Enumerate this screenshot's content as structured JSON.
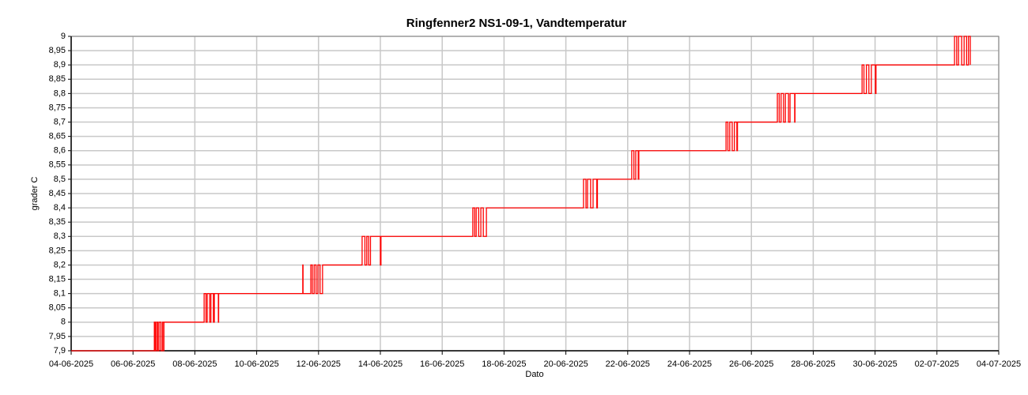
{
  "chart_data": {
    "type": "line",
    "title": "Ringfenner2 NS1-09-1, Vandtemperatur",
    "xlabel": "Dato",
    "ylabel": "grader C",
    "grid": true,
    "xlim": [
      0,
      30
    ],
    "xticks": [
      {
        "value": 0,
        "label": "04-06-2025"
      },
      {
        "value": 2,
        "label": "06-06-2025"
      },
      {
        "value": 4,
        "label": "08-06-2025"
      },
      {
        "value": 6,
        "label": "10-06-2025"
      },
      {
        "value": 8,
        "label": "12-06-2025"
      },
      {
        "value": 10,
        "label": "14-06-2025"
      },
      {
        "value": 12,
        "label": "16-06-2025"
      },
      {
        "value": 14,
        "label": "18-06-2025"
      },
      {
        "value": 16,
        "label": "20-06-2025"
      },
      {
        "value": 18,
        "label": "22-06-2025"
      },
      {
        "value": 20,
        "label": "24-06-2025"
      },
      {
        "value": 22,
        "label": "26-06-2025"
      },
      {
        "value": 24,
        "label": "28-06-2025"
      },
      {
        "value": 26,
        "label": "30-06-2025"
      },
      {
        "value": 28,
        "label": "02-07-2025"
      },
      {
        "value": 30,
        "label": "04-07-2025"
      }
    ],
    "ylim": [
      7.9,
      9
    ],
    "yticks": [
      {
        "value": 7.9,
        "label": "7,9"
      },
      {
        "value": 7.95,
        "label": "7,95"
      },
      8,
      {
        "value": 8.05,
        "label": "8,05"
      },
      {
        "value": 8.1,
        "label": "8,1"
      },
      {
        "value": 8.15,
        "label": "8,15"
      },
      {
        "value": 8.2,
        "label": "8,2"
      },
      {
        "value": 8.25,
        "label": "8,25"
      },
      {
        "value": 8.3,
        "label": "8,3"
      },
      {
        "value": 8.35,
        "label": "8,35"
      },
      {
        "value": 8.4,
        "label": "8,4"
      },
      {
        "value": 8.45,
        "label": "8,45"
      },
      {
        "value": 8.5,
        "label": "8,5"
      },
      {
        "value": 8.55,
        "label": "8,55"
      },
      {
        "value": 8.6,
        "label": "8,6"
      },
      {
        "value": 8.65,
        "label": "8,65"
      },
      {
        "value": 8.7,
        "label": "8,7"
      },
      {
        "value": 8.75,
        "label": "8,75"
      },
      {
        "value": 8.8,
        "label": "8,8"
      },
      {
        "value": 8.85,
        "label": "8,85"
      },
      {
        "value": 8.9,
        "label": "8,9"
      },
      {
        "value": 8.95,
        "label": "8,95"
      },
      9
    ],
    "series": [
      {
        "color": "#ff0000",
        "x": [
          0,
          2.69,
          2.69,
          2.72,
          2.72,
          2.76,
          2.76,
          2.8,
          2.8,
          2.84,
          2.84,
          2.9,
          2.9,
          2.95,
          2.95,
          2.99,
          2.99,
          3.0,
          3.0,
          4.3,
          4.3,
          4.36,
          4.36,
          4.4,
          4.4,
          4.48,
          4.48,
          4.52,
          4.52,
          4.6,
          4.6,
          4.63,
          4.63,
          4.76,
          4.76,
          4.77,
          4.77,
          7.49,
          7.49,
          7.5,
          7.5,
          7.75,
          7.75,
          7.8,
          7.8,
          7.86,
          7.86,
          7.92,
          7.92,
          7.98,
          7.98,
          8.05,
          8.05,
          8.13,
          8.13,
          9.41,
          9.41,
          9.5,
          9.5,
          9.56,
          9.56,
          9.62,
          9.62,
          9.68,
          9.68,
          10.0,
          10.0,
          10.02,
          10.02,
          12.99,
          12.99,
          13.05,
          13.05,
          13.1,
          13.1,
          13.18,
          13.18,
          13.25,
          13.25,
          13.33,
          13.33,
          13.43,
          13.43,
          16.57,
          16.57,
          16.65,
          16.65,
          16.7,
          16.7,
          16.8,
          16.8,
          16.88,
          16.88,
          17.0,
          17.0,
          17.02,
          17.02,
          18.13,
          18.13,
          18.2,
          18.2,
          18.26,
          18.26,
          18.34,
          18.34,
          18.36,
          18.36,
          21.18,
          21.18,
          21.24,
          21.24,
          21.3,
          21.3,
          21.38,
          21.38,
          21.45,
          21.45,
          21.53,
          21.53,
          21.55,
          21.55,
          22.84,
          22.84,
          22.9,
          22.9,
          22.96,
          22.96,
          23.04,
          23.04,
          23.1,
          23.1,
          23.2,
          23.2,
          23.25,
          23.25,
          23.4,
          23.4,
          23.41,
          23.41,
          25.58,
          25.58,
          25.64,
          25.64,
          25.72,
          25.72,
          25.8,
          25.8,
          25.88,
          25.88,
          26.01,
          26.01,
          26.03,
          26.03,
          28.57,
          28.57,
          28.64,
          28.64,
          28.7,
          28.7,
          28.8,
          28.8,
          28.88,
          28.88,
          28.96,
          28.96,
          29.02,
          29.02,
          29.08,
          29.08
        ],
        "values": [
          7.9,
          7.9,
          8,
          8,
          7.9,
          7.9,
          8,
          8,
          7.9,
          7.9,
          8,
          8,
          7.9,
          7.9,
          8,
          8,
          7.9,
          7.9,
          8,
          8,
          8.1,
          8.1,
          8,
          8,
          8.1,
          8.1,
          8,
          8,
          8.1,
          8.1,
          8,
          8,
          8.1,
          8.1,
          8,
          8,
          8.1,
          8.1,
          8.2,
          8.2,
          8.1,
          8.1,
          8.2,
          8.2,
          8.1,
          8.1,
          8.2,
          8.2,
          8.1,
          8.1,
          8.2,
          8.2,
          8.1,
          8.1,
          8.2,
          8.2,
          8.3,
          8.3,
          8.2,
          8.2,
          8.3,
          8.3,
          8.2,
          8.2,
          8.3,
          8.3,
          8.2,
          8.2,
          8.3,
          8.3,
          8.4,
          8.4,
          8.3,
          8.3,
          8.4,
          8.4,
          8.3,
          8.3,
          8.4,
          8.4,
          8.3,
          8.3,
          8.4,
          8.4,
          8.5,
          8.5,
          8.4,
          8.4,
          8.5,
          8.5,
          8.4,
          8.4,
          8.5,
          8.5,
          8.4,
          8.4,
          8.5,
          8.5,
          8.6,
          8.6,
          8.5,
          8.5,
          8.6,
          8.6,
          8.5,
          8.5,
          8.6,
          8.6,
          8.7,
          8.7,
          8.6,
          8.6,
          8.7,
          8.7,
          8.6,
          8.6,
          8.7,
          8.7,
          8.6,
          8.6,
          8.7,
          8.7,
          8.8,
          8.8,
          8.7,
          8.7,
          8.8,
          8.8,
          8.7,
          8.7,
          8.8,
          8.8,
          8.7,
          8.7,
          8.8,
          8.8,
          8.7,
          8.7,
          8.8,
          8.8,
          8.9,
          8.9,
          8.8,
          8.8,
          8.9,
          8.9,
          8.8,
          8.8,
          8.9,
          8.9,
          8.8,
          8.8,
          8.9,
          8.9,
          9,
          9,
          8.9,
          8.9,
          9,
          9,
          8.9,
          8.9,
          9,
          9,
          8.9,
          8.9,
          9,
          9,
          8.9
        ]
      }
    ]
  }
}
